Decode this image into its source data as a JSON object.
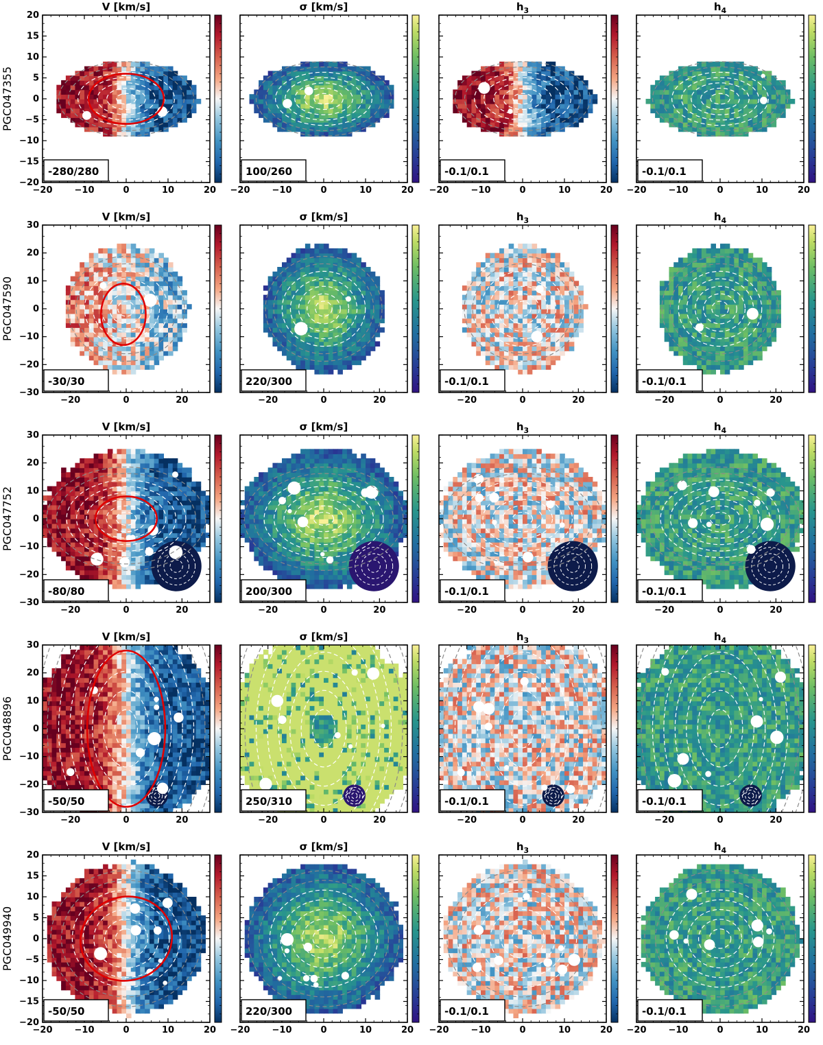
{
  "figure": {
    "panel_titles": [
      "V [km/s]",
      "σ [km/s]",
      "h3",
      "h4"
    ],
    "panel_title_parts": [
      {
        "main": "V [km/s]",
        "sub": ""
      },
      {
        "main": "σ [km/s]",
        "sub": ""
      },
      {
        "main": "h",
        "sub": "3"
      },
      {
        "main": "h",
        "sub": "4"
      }
    ]
  },
  "chart_data": [
    {
      "type": "heatmap",
      "galaxy": "PGC047355",
      "xlim": [
        -20,
        20
      ],
      "ylim": [
        -20,
        20
      ],
      "xticks": [
        -20,
        -10,
        0,
        10,
        20
      ],
      "yticks": [
        -20,
        -15,
        -10,
        -5,
        0,
        5,
        10,
        15,
        20
      ],
      "map_shape": {
        "semi_axis_x": 17,
        "semi_axis_y": 9
      },
      "contours": {
        "n": 7,
        "axis_ratio": 0.55
      },
      "ellipse": {
        "cx": 0,
        "cy": 0,
        "a": 9,
        "b": 6,
        "angle_deg": 0
      },
      "maps": [
        {
          "quantity": "V",
          "range_label": "-280/280",
          "vmin": -280,
          "vmax": 280,
          "cmap": "RdBu_r",
          "pattern": "rotation"
        },
        {
          "quantity": "sigma",
          "range_label": "100/260",
          "vmin": 100,
          "vmax": 260,
          "cmap": "viridis_like",
          "pattern": "central_peak"
        },
        {
          "quantity": "h3",
          "range_label": "-0.1/0.1",
          "vmin": -0.1,
          "vmax": 0.1,
          "cmap": "RdBu_r",
          "pattern": "rotation"
        },
        {
          "quantity": "h4",
          "range_label": "-0.1/0.1",
          "vmin": -0.1,
          "vmax": 0.1,
          "cmap": "viridis_like",
          "pattern": "noise"
        }
      ]
    },
    {
      "type": "heatmap",
      "galaxy": "PGC047590",
      "xlim": [
        -30,
        30
      ],
      "ylim": [
        -30,
        30
      ],
      "xticks": [
        -20,
        0,
        20
      ],
      "yticks": [
        -30,
        -20,
        -10,
        0,
        10,
        20,
        30
      ],
      "map_shape": {
        "semi_axis_x": 22,
        "semi_axis_y": 23
      },
      "contours": {
        "n": 7,
        "axis_ratio": 0.9
      },
      "ellipse": {
        "cx": -1,
        "cy": -2,
        "a": 8,
        "b": 11,
        "angle_deg": 0
      },
      "maps": [
        {
          "quantity": "V",
          "range_label": "-30/30",
          "vmin": -30,
          "vmax": 30,
          "cmap": "RdBu_r",
          "pattern": "weak_rotation"
        },
        {
          "quantity": "sigma",
          "range_label": "220/300",
          "vmin": 220,
          "vmax": 300,
          "cmap": "viridis_like",
          "pattern": "central_peak"
        },
        {
          "quantity": "h3",
          "range_label": "-0.1/0.1",
          "vmin": -0.1,
          "vmax": 0.1,
          "cmap": "RdBu_r",
          "pattern": "noise"
        },
        {
          "quantity": "h4",
          "range_label": "-0.1/0.1",
          "vmin": -0.1,
          "vmax": 0.1,
          "cmap": "viridis_like",
          "pattern": "noise"
        }
      ]
    },
    {
      "type": "heatmap",
      "galaxy": "PGC047752",
      "xlim": [
        -30,
        30
      ],
      "ylim": [
        -30,
        30
      ],
      "xticks": [
        -20,
        0,
        20
      ],
      "yticks": [
        -30,
        -20,
        -10,
        0,
        10,
        20,
        30
      ],
      "map_shape": {
        "semi_axis_x": 30,
        "semi_axis_y": 25
      },
      "contours": {
        "n": 8,
        "axis_ratio": 0.65
      },
      "ellipse": {
        "cx": 0,
        "cy": 0,
        "a": 11,
        "b": 8,
        "angle_deg": 0
      },
      "maps": [
        {
          "quantity": "V",
          "range_label": "-80/80",
          "vmin": -80,
          "vmax": 80,
          "cmap": "RdBu_r",
          "pattern": "rotation"
        },
        {
          "quantity": "sigma",
          "range_label": "200/300",
          "vmin": 200,
          "vmax": 300,
          "cmap": "viridis_like",
          "pattern": "central_peak"
        },
        {
          "quantity": "h3",
          "range_label": "-0.1/0.1",
          "vmin": -0.1,
          "vmax": 0.1,
          "cmap": "RdBu_r",
          "pattern": "noise"
        },
        {
          "quantity": "h4",
          "range_label": "-0.1/0.1",
          "vmin": -0.1,
          "vmax": 0.1,
          "cmap": "viridis_like",
          "pattern": "noise"
        }
      ],
      "companion": {
        "x": 18,
        "y": -17,
        "r": 9
      }
    },
    {
      "type": "heatmap",
      "galaxy": "PGC048896",
      "xlim": [
        -30,
        30
      ],
      "ylim": [
        -30,
        30
      ],
      "xticks": [
        -20,
        0,
        20
      ],
      "yticks": [
        -30,
        -20,
        -10,
        0,
        10,
        20,
        30
      ],
      "map_shape": {
        "semi_axis_x": 34,
        "semi_axis_y": 34
      },
      "contours": {
        "n": 8,
        "axis_ratio": 1.7
      },
      "ellipse": {
        "cx": 0,
        "cy": 0,
        "a": 14,
        "b": 28,
        "angle_deg": 0
      },
      "maps": [
        {
          "quantity": "V",
          "range_label": "-50/50",
          "vmin": -50,
          "vmax": 50,
          "cmap": "RdBu_r",
          "pattern": "rotation"
        },
        {
          "quantity": "sigma",
          "range_label": "250/310",
          "vmin": 250,
          "vmax": 310,
          "cmap": "viridis_like",
          "pattern": "high_outer"
        },
        {
          "quantity": "h3",
          "range_label": "-0.1/0.1",
          "vmin": -0.1,
          "vmax": 0.1,
          "cmap": "RdBu_r",
          "pattern": "noise"
        },
        {
          "quantity": "h4",
          "range_label": "-0.1/0.1",
          "vmin": -0.1,
          "vmax": 0.1,
          "cmap": "viridis_like",
          "pattern": "noise"
        }
      ],
      "companion": {
        "x": 11,
        "y": -24,
        "r": 4
      }
    },
    {
      "type": "heatmap",
      "galaxy": "PGC049940",
      "xlim": [
        -20,
        20
      ],
      "ylim": [
        -20,
        20
      ],
      "xticks": [
        -20,
        -10,
        0,
        10,
        20
      ],
      "yticks": [
        -20,
        -15,
        -10,
        -5,
        0,
        5,
        10,
        15,
        20
      ],
      "map_shape": {
        "semi_axis_x": 19,
        "semi_axis_y": 18
      },
      "contours": {
        "n": 7,
        "axis_ratio": 0.9
      },
      "ellipse": {
        "cx": 0,
        "cy": 0,
        "a": 11,
        "b": 10,
        "angle_deg": 15
      },
      "maps": [
        {
          "quantity": "V",
          "range_label": "-50/50",
          "vmin": -50,
          "vmax": 50,
          "cmap": "RdBu_r",
          "pattern": "rotation"
        },
        {
          "quantity": "sigma",
          "range_label": "220/300",
          "vmin": 220,
          "vmax": 300,
          "cmap": "viridis_like",
          "pattern": "central_peak"
        },
        {
          "quantity": "h3",
          "range_label": "-0.1/0.1",
          "vmin": -0.1,
          "vmax": 0.1,
          "cmap": "RdBu_r",
          "pattern": "noise"
        },
        {
          "quantity": "h4",
          "range_label": "-0.1/0.1",
          "vmin": -0.1,
          "vmax": 0.1,
          "cmap": "viridis_like",
          "pattern": "noise"
        }
      ]
    }
  ]
}
